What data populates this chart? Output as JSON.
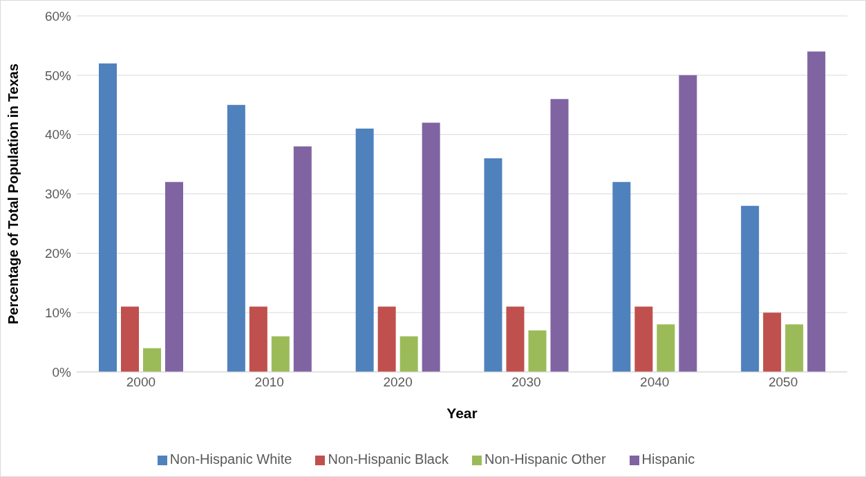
{
  "chart_data": {
    "type": "bar",
    "xlabel": "Year",
    "ylabel": "Percentage of Total Population in Texas",
    "categories": [
      "2000",
      "2010",
      "2020",
      "2030",
      "2040",
      "2050"
    ],
    "series": [
      {
        "name": "Non-Hispanic White",
        "color": "#4f81bd",
        "values": [
          52,
          45,
          41,
          36,
          32,
          28
        ]
      },
      {
        "name": "Non-Hispanic Black",
        "color": "#c0504d",
        "values": [
          11,
          11,
          11,
          11,
          11,
          10
        ]
      },
      {
        "name": "Non-Hispanic Other",
        "color": "#9bbb59",
        "values": [
          4,
          6,
          6,
          7,
          8,
          8
        ]
      },
      {
        "name": "Hispanic",
        "color": "#8064a2",
        "values": [
          32,
          38,
          42,
          46,
          50,
          54
        ]
      }
    ],
    "ylim": [
      0,
      60
    ],
    "yticks": [
      {
        "value": 0,
        "label": "0%"
      },
      {
        "value": 10,
        "label": "10%"
      },
      {
        "value": 20,
        "label": "20%"
      },
      {
        "value": 30,
        "label": "30%"
      },
      {
        "value": 40,
        "label": "40%"
      },
      {
        "value": 50,
        "label": "50%"
      },
      {
        "value": 60,
        "label": "60%"
      }
    ],
    "grid": "y",
    "legend": "bottom"
  }
}
